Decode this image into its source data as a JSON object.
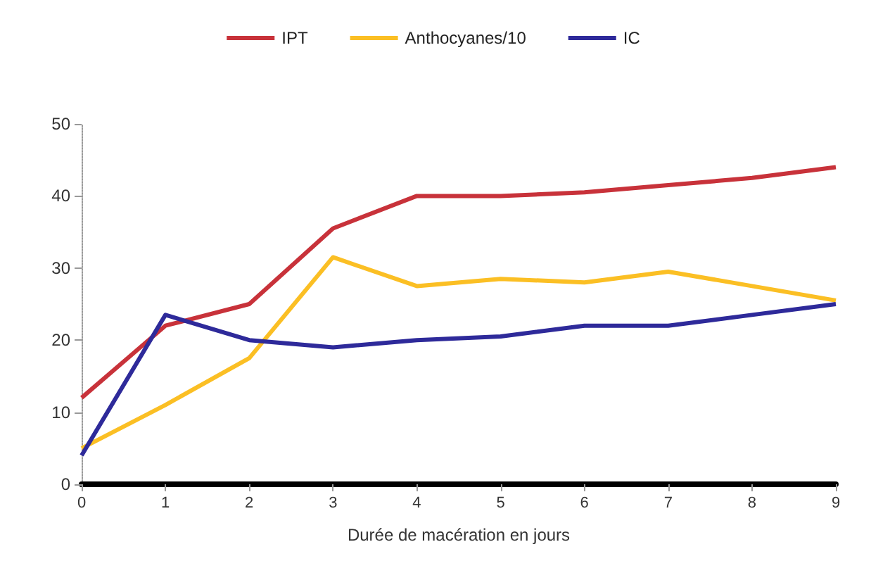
{
  "chart_data": {
    "type": "line",
    "xlabel": "Durée de macération en jours",
    "x": [
      0,
      1,
      2,
      3,
      4,
      5,
      6,
      7,
      8,
      9
    ],
    "series": [
      {
        "name": "IPT",
        "color": "#c8323a",
        "values": [
          12,
          22,
          25,
          35.5,
          40,
          40,
          40.5,
          41.5,
          42.5,
          44
        ]
      },
      {
        "name": "Anthocyanes/10",
        "color": "#fbbf24",
        "values": [
          5,
          11,
          17.5,
          31.5,
          27.5,
          28.5,
          28,
          29.5,
          27.5,
          25.5
        ]
      },
      {
        "name": "IC",
        "color": "#2e2a9a",
        "values": [
          4,
          23.5,
          20,
          19,
          20,
          20.5,
          22,
          22,
          23.5,
          25
        ]
      }
    ],
    "xlim": [
      0,
      9
    ],
    "xticks": [
      0,
      1,
      2,
      3,
      4,
      5,
      6,
      7,
      8,
      9
    ],
    "ylim": [
      0,
      50
    ],
    "yticks": [
      0,
      10,
      20,
      30,
      40,
      50
    ],
    "grid": false,
    "legend": "top",
    "marker": "none",
    "line_style": "solid"
  }
}
